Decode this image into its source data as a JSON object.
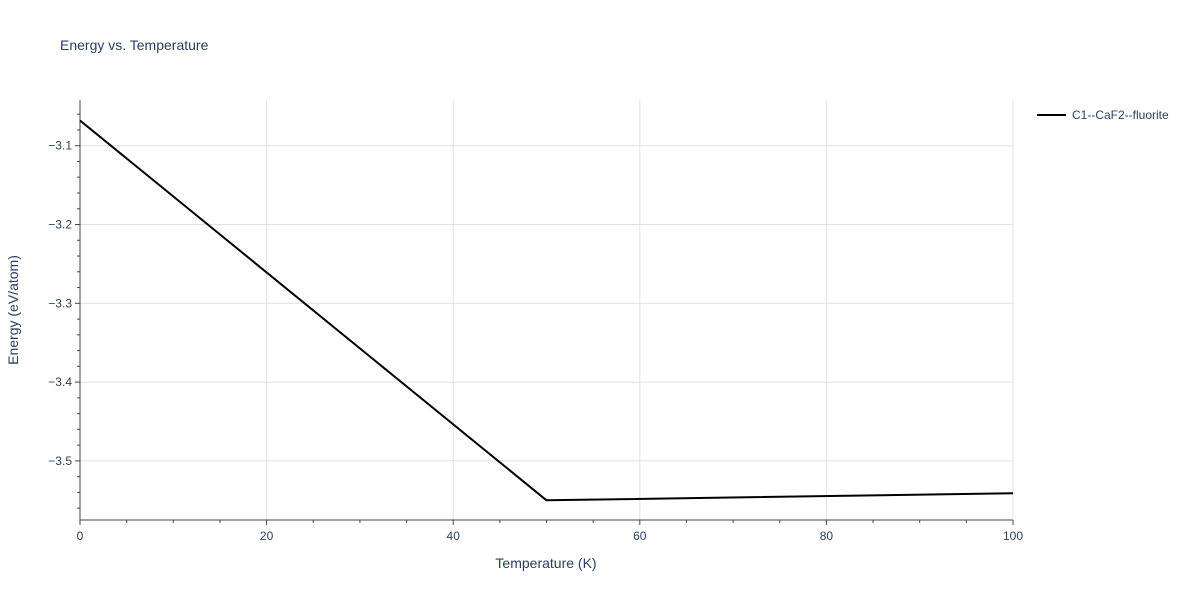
{
  "chart_data": {
    "type": "line",
    "title": "Energy vs. Temperature",
    "xlabel": "Temperature (K)",
    "ylabel": "Energy (eV/atom)",
    "xlim": [
      0,
      100
    ],
    "ylim": [
      -3.575,
      -3.042
    ],
    "x_ticks": [
      0,
      20,
      40,
      60,
      80,
      100
    ],
    "x_tick_labels": [
      "0",
      "20",
      "40",
      "60",
      "80",
      "100"
    ],
    "x_minor_step": 5,
    "y_ticks": [
      -3.5,
      -3.4,
      -3.3,
      -3.2,
      -3.1
    ],
    "y_tick_labels": [
      "−3.5",
      "−3.4",
      "−3.3",
      "−3.2",
      "−3.1"
    ],
    "y_minor_step": 0.02,
    "grid": true,
    "legend_position": "top-right",
    "series": [
      {
        "name": "C1--CaF2--fluorite",
        "color": "#000000",
        "x": [
          0,
          50,
          100
        ],
        "y": [
          -3.068,
          -3.55,
          -3.541
        ]
      }
    ]
  }
}
